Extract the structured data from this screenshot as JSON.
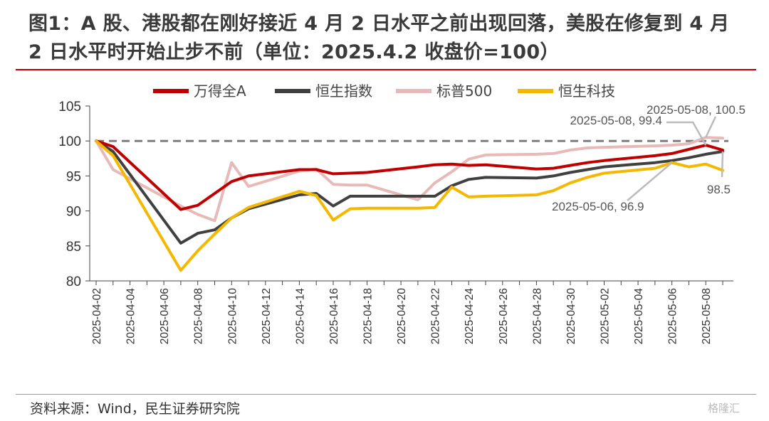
{
  "title": "图1：A 股、港股都在刚好接近 4 月 2 日水平之前出现回落，美股在修复到 4 月 2 日水平时开始止步不前（单位：2025.4.2 收盘价=100）",
  "source": "资料来源：Wind，民生证券研究院",
  "watermark": "格隆汇",
  "chart_data": {
    "type": "line",
    "x": [
      "2025-04-02",
      "2025-04-03",
      "2025-04-07",
      "2025-04-08",
      "2025-04-09",
      "2025-04-10",
      "2025-04-11",
      "2025-04-14",
      "2025-04-15",
      "2025-04-16",
      "2025-04-17",
      "2025-04-18",
      "2025-04-21",
      "2025-04-22",
      "2025-04-23",
      "2025-04-24",
      "2025-04-25",
      "2025-04-28",
      "2025-04-29",
      "2025-04-30",
      "2025-05-01",
      "2025-05-02",
      "2025-05-05",
      "2025-05-06",
      "2025-05-07",
      "2025-05-08",
      "2025-05-09"
    ],
    "x_ticks": [
      "2025-04-02",
      "2025-04-04",
      "2025-04-06",
      "2025-04-08",
      "2025-04-10",
      "2025-04-12",
      "2025-04-14",
      "2025-04-16",
      "2025-04-18",
      "2025-04-20",
      "2025-04-22",
      "2025-04-24",
      "2025-04-26",
      "2025-04-28",
      "2025-04-30",
      "2025-05-02",
      "2025-05-04",
      "2025-05-06",
      "2025-05-08"
    ],
    "ylim": [
      80,
      105
    ],
    "yticks": [
      80,
      85,
      90,
      95,
      100,
      105
    ],
    "reference_line": 100,
    "legend_position": "top",
    "series": [
      {
        "name": "万得全A",
        "color": "#c00000",
        "values": [
          100,
          99.2,
          90.2,
          90.8,
          92.5,
          94.2,
          95.0,
          95.9,
          95.9,
          95.3,
          95.4,
          95.5,
          96.3,
          96.6,
          96.7,
          96.5,
          96.6,
          96.0,
          96.1,
          96.5,
          96.9,
          97.2,
          97.9,
          98.2,
          98.8,
          99.4,
          98.7
        ]
      },
      {
        "name": "恒生指数",
        "color": "#404040",
        "values": [
          100,
          98.5,
          85.4,
          86.8,
          87.3,
          89.0,
          90.3,
          92.3,
          92.5,
          90.7,
          92.1,
          92.1,
          92.1,
          92.1,
          93.6,
          94.5,
          94.8,
          94.7,
          95.0,
          95.5,
          95.9,
          96.3,
          96.9,
          97.2,
          97.6,
          98.1,
          98.5
        ]
      },
      {
        "name": "标普500",
        "color": "#e8b9b9",
        "values": [
          100,
          95.9,
          90.7,
          89.5,
          88.6,
          96.9,
          93.5,
          95.7,
          96.0,
          93.8,
          93.7,
          93.7,
          91.6,
          94.0,
          95.6,
          97.4,
          98.0,
          98.1,
          98.2,
          98.7,
          99.0,
          99.1,
          99.3,
          99.4,
          99.6,
          100.5,
          100.4
        ]
      },
      {
        "name": "恒生科技",
        "color": "#f5b800",
        "values": [
          100,
          97.9,
          81.5,
          84.3,
          86.7,
          89.0,
          90.5,
          92.8,
          92.2,
          88.7,
          90.3,
          90.4,
          90.4,
          90.5,
          93.4,
          92.0,
          92.1,
          92.3,
          92.9,
          94.0,
          94.8,
          95.4,
          96.1,
          96.9,
          96.3,
          96.7,
          95.8
        ]
      }
    ],
    "annotations": [
      {
        "text": "2025-05-08, 100.5",
        "series": "标普500",
        "point": "2025-05-08"
      },
      {
        "text": "2025-05-08, 99.4",
        "series": "万得全A",
        "point": "2025-05-08"
      },
      {
        "text": "2025-05-06, 96.9",
        "series": "恒生科技",
        "point": "2025-05-06"
      },
      {
        "text": "98.5",
        "series": "恒生指数",
        "point": "2025-05-09"
      }
    ]
  }
}
